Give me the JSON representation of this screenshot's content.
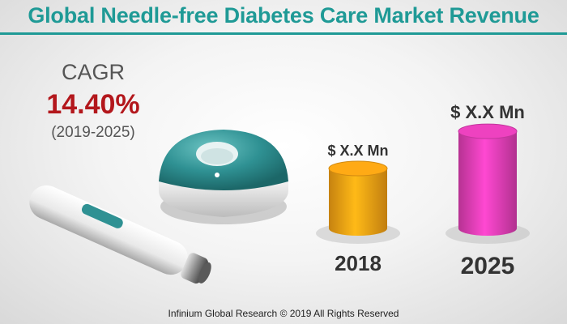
{
  "title": "Global Needle-free Diabetes Care Market Revenue",
  "cagr": {
    "label": "CAGR",
    "value": "14.40%",
    "period": "(2019-2025)"
  },
  "footer": "Infinium Global Research © 2019 All Rights Reserved",
  "chart_data": {
    "type": "bar",
    "categories": [
      "2018",
      "2025"
    ],
    "value_labels": [
      "$ X.X Mn",
      "$ X.X Mn"
    ],
    "values": [
      1,
      1.62
    ],
    "colors": [
      "#f7a214",
      "#e33fb7"
    ],
    "title": "Global Needle-free Diabetes Care Market Revenue"
  },
  "product_image": {
    "description_icon": "needle-free-injector-and-dome-device-icon",
    "accent": "#2f9193"
  }
}
